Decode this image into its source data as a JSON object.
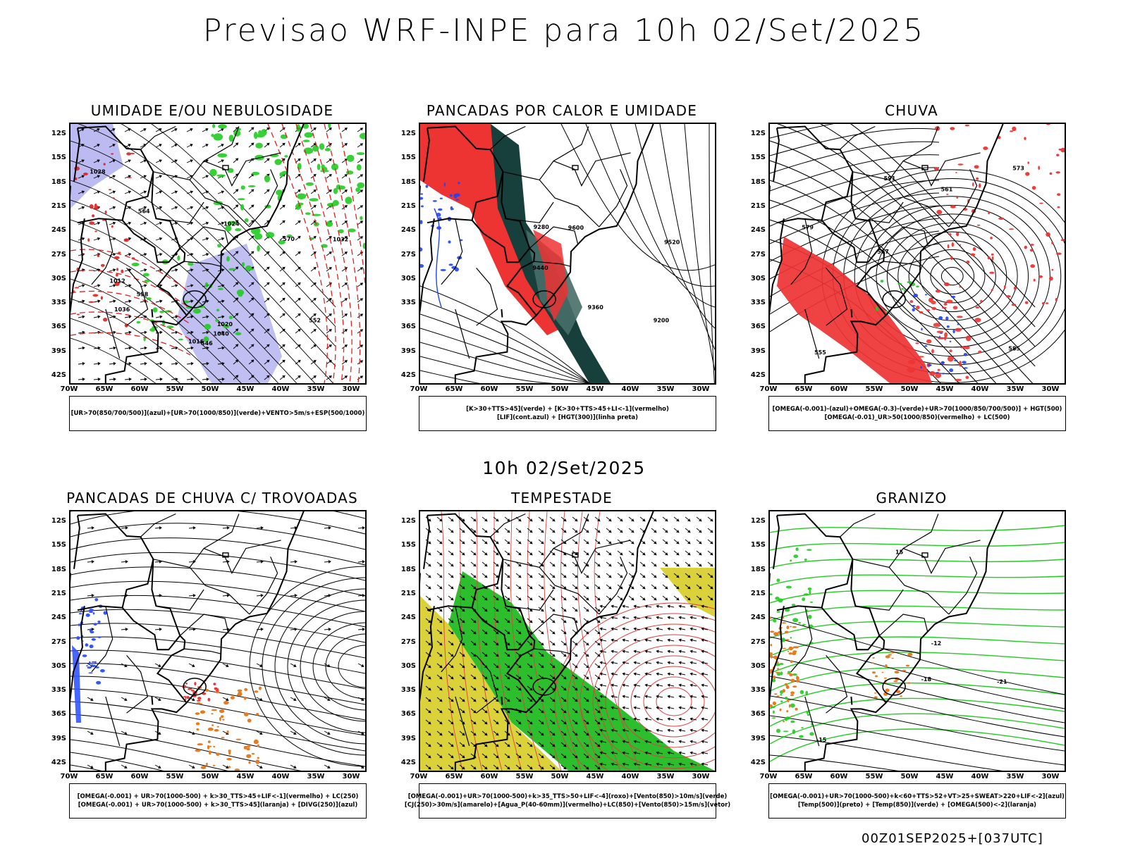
{
  "main_title": "Previsao WRF-INPE  para 10h 02/Set/2025",
  "mid_title": "10h 02/Set/2025",
  "footer": "00Z01SEP2025+[037UTC]",
  "lat_labels": [
    "12S",
    "15S",
    "18S",
    "21S",
    "24S",
    "27S",
    "30S",
    "33S",
    "36S",
    "39S",
    "42S"
  ],
  "lon_labels": [
    "70W",
    "65W",
    "60W",
    "55W",
    "50W",
    "45W",
    "40W",
    "35W",
    "30W"
  ],
  "panels": [
    {
      "title": "UMIDADE E/OU NEBULOSIDADE",
      "legend": [
        "[UR>70(850/700/500)](azul)+[UR>70(1000/850)](verde)+VENTO>5m/s+ESP(500/1000)"
      ],
      "contour_labels": [
        "1016",
        "1020",
        "1024",
        "1028",
        "1032",
        "1036",
        "1040",
        "1012",
        "570",
        "564",
        "558",
        "552",
        "546"
      ]
    },
    {
      "title": "PANCADAS POR CALOR E UMIDADE",
      "legend": [
        "[K>30+TTS>45](verde) + [K>30+TTS>45+LI<-1](vermelho)",
        "[LIF](cont.azul) + [HGT(300)](linha preta)"
      ],
      "contour_labels": [
        "9600",
        "9520",
        "9440",
        "9360",
        "9280",
        "9200"
      ]
    },
    {
      "title": "CHUVA",
      "legend": [
        "[OMEGA(-0.001)-(azul)+OMEGA(-0.3)-(verde)+UR>70(1000/850/700/500)] + HGT(500)",
        "[OMEGA(-0.01)_UR>50(1000/850)(vermelho) + LC(500)"
      ],
      "contour_labels": [
        "585",
        "579",
        "573",
        "567",
        "561",
        "555",
        "591"
      ]
    },
    {
      "title": "PANCADAS DE CHUVA C/ TROVOADAS",
      "legend": [
        "[OMEGA(-0.001) + UR>70(1000-500) + k>30_TTS>45+LIF<-1](vermelho) + LC(250)",
        "[OMEGA(-0.001) + UR>70(1000-500) + k>30_TTS>45](laranja) + [DIVG(250)](azul)"
      ],
      "contour_labels": []
    },
    {
      "title": "TEMPESTADE",
      "legend": [
        "[OMEGA(-0.001)+UR>70(1000-500)+k>35_TTS>50+LIF<-4](roxo)+[Vento(850)>10m/s](verde)",
        "[CJ(250)>30m/s](amarelo)+[Agua_P(40-60mm)](vermelho)+LC(850)+[Vento(850)>15m/s](vetor)"
      ],
      "contour_labels": []
    },
    {
      "title": "GRANIZO",
      "legend": [
        "[OMEGA(-0.001)+UR>70(1000-500)+k<60+TTS>52+VT>25+SWEAT>220+LIF<-2](azul)",
        "[Temp(500)](preto) + [Temp(850)](verde) + [OMEGA(500)<-2](laranja)"
      ],
      "contour_labels": [
        "-15",
        "-21",
        "-12",
        "-18",
        "15"
      ]
    }
  ]
}
